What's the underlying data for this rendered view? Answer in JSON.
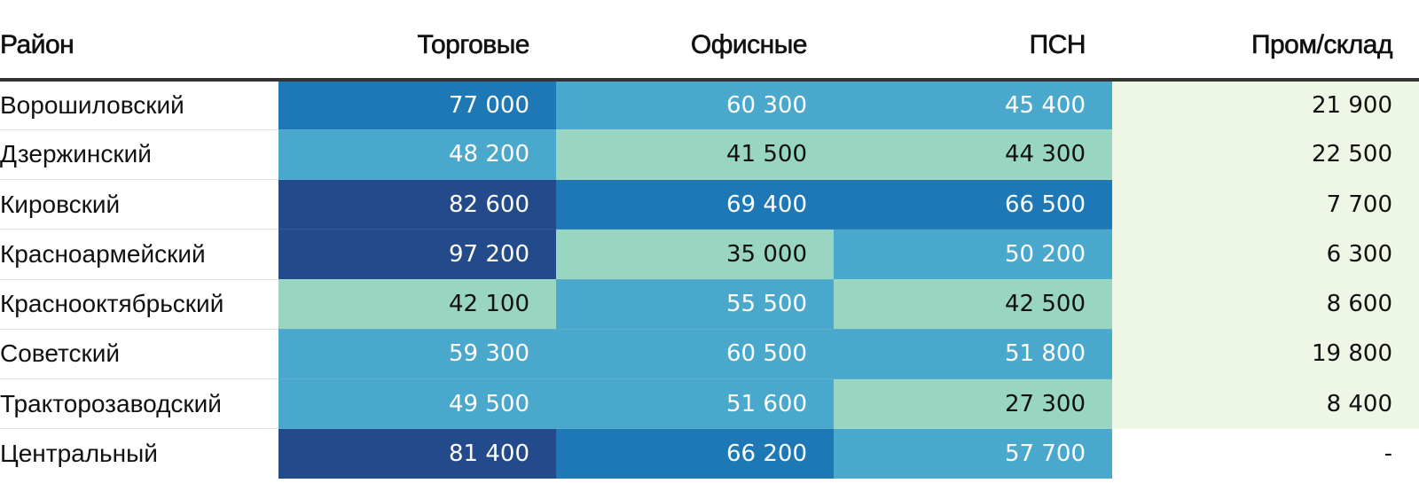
{
  "chart_data": {
    "type": "heatmap",
    "columns": [
      "Район",
      "Торговые",
      "Офисные",
      "ПСН",
      "Пром/склад"
    ],
    "rows": [
      {
        "district": "Ворошиловский",
        "values": [
          "77 000",
          "60 300",
          "45 400",
          "21 900"
        ]
      },
      {
        "district": "Дзержинский",
        "values": [
          "48 200",
          "41 500",
          "44 300",
          "22 500"
        ]
      },
      {
        "district": "Кировский",
        "values": [
          "82 600",
          "69 400",
          "66 500",
          "7 700"
        ]
      },
      {
        "district": "Красноармейский",
        "values": [
          "97 200",
          "35 000",
          "50 200",
          "6 300"
        ]
      },
      {
        "district": "Краснооктябрьский",
        "values": [
          "42 100",
          "55 500",
          "42 500",
          "8 600"
        ]
      },
      {
        "district": "Советский",
        "values": [
          "59 300",
          "60 500",
          "51 800",
          "19 800"
        ]
      },
      {
        "district": "Тракторозаводский",
        "values": [
          "49 500",
          "51 600",
          "27 300",
          "8 400"
        ]
      },
      {
        "district": "Центральный",
        "values": [
          "81 400",
          "66 200",
          "57 700",
          "-"
        ]
      }
    ],
    "colors": {
      "level_1": "#eef7e6",
      "level_2": "#98d6c2",
      "level_3": "#4aa8cc",
      "level_4": "#1d78b5",
      "level_5": "#234a8a",
      "empty": "#ffffff",
      "text_dark": "#111111",
      "text_light": "#ffffff"
    }
  }
}
